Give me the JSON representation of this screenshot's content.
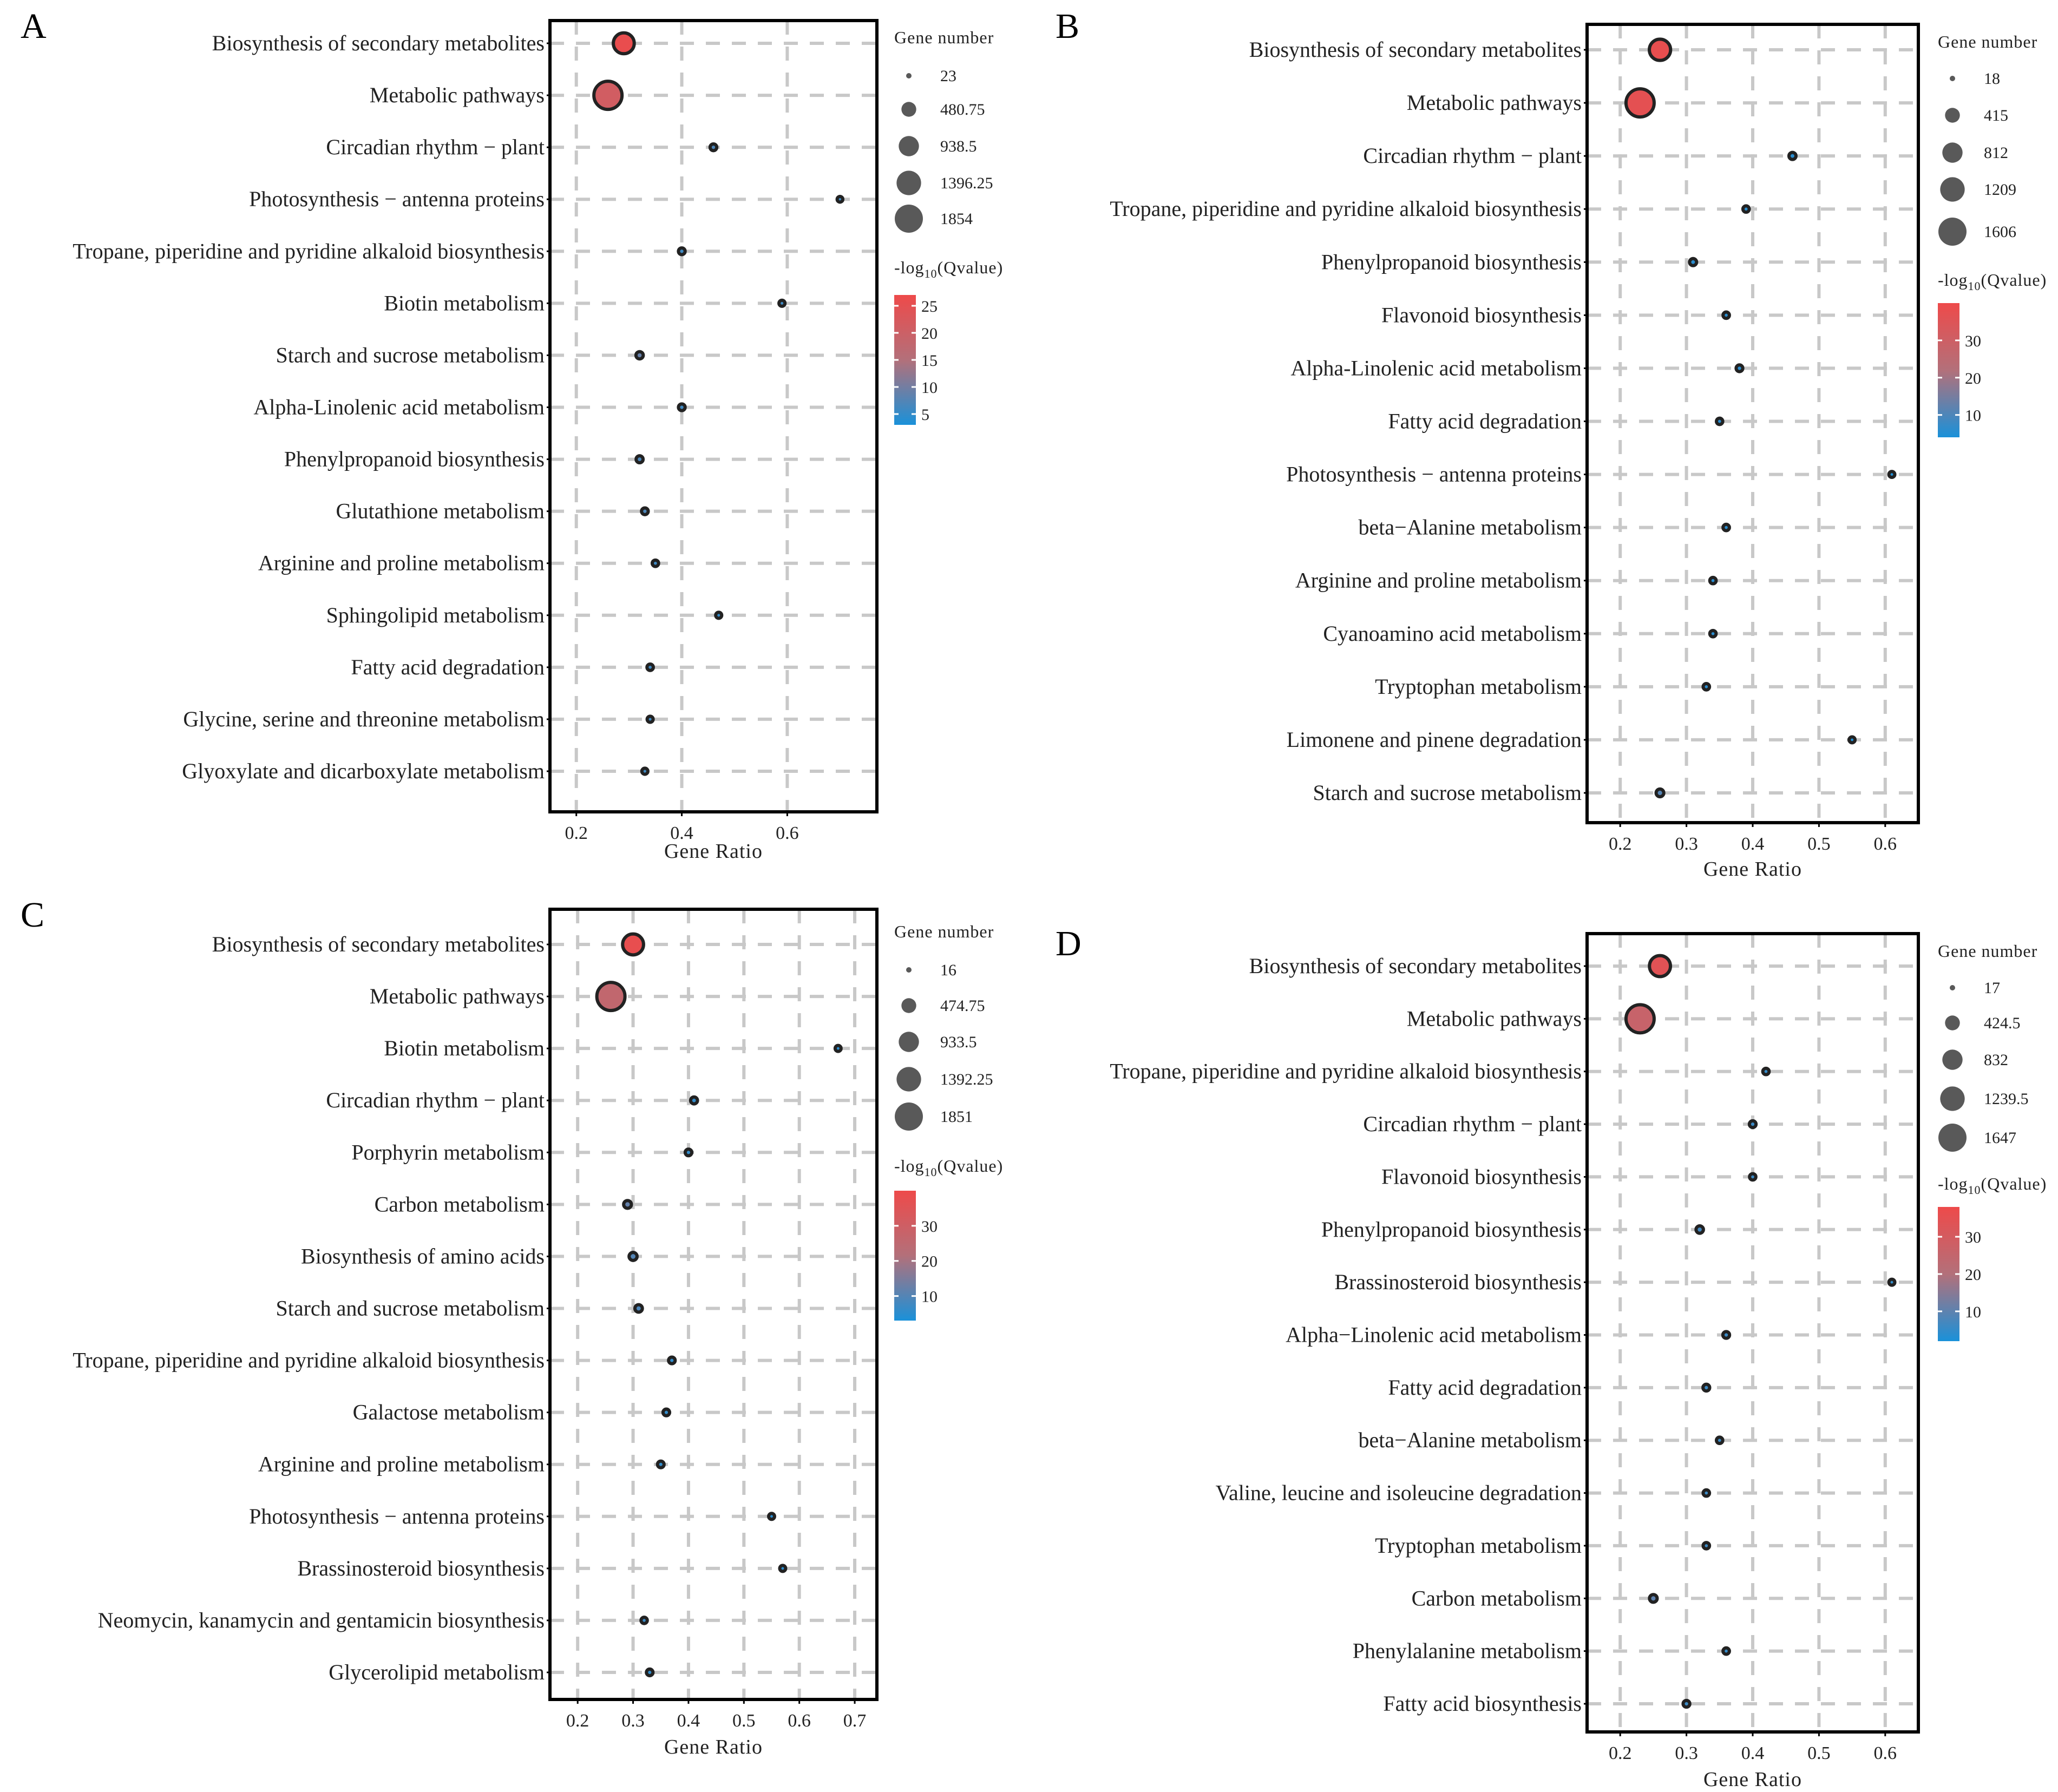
{
  "figure": {
    "panels": [
      {
        "letter": "A",
        "xlabel": "Gene Ratio",
        "size_legend_title": "Gene number",
        "size_legend_values": [
          "23",
          "480.75",
          "938.5",
          "1396.25",
          "1854"
        ],
        "color_legend_title": "-log10(Qvalue)",
        "color_legend_ticks": [
          "25",
          "20",
          "15",
          "10",
          "5"
        ]
      },
      {
        "letter": "B",
        "xlabel": "Gene Ratio",
        "size_legend_title": "Gene number",
        "size_legend_values": [
          "18",
          "415",
          "812",
          "1209",
          "1606"
        ],
        "color_legend_title": "-log10(Qvalue)",
        "color_legend_ticks": [
          "30",
          "20",
          "10"
        ]
      },
      {
        "letter": "C",
        "xlabel": "Gene Ratio",
        "size_legend_title": "Gene number",
        "size_legend_values": [
          "16",
          "474.75",
          "933.5",
          "1392.25",
          "1851"
        ],
        "color_legend_title": "-log10(Qvalue)",
        "color_legend_ticks": [
          "30",
          "20",
          "10"
        ]
      },
      {
        "letter": "D",
        "xlabel": "Gene Ratio",
        "size_legend_title": "Gene number",
        "size_legend_values": [
          "17",
          "424.5",
          "832",
          "1239.5",
          "1647"
        ],
        "color_legend_title": "-log10(Qvalue)",
        "color_legend_ticks": [
          "30",
          "20",
          "10"
        ]
      }
    ]
  },
  "chart_data": [
    {
      "panel": "A",
      "type": "scatter",
      "encoding": "bubble",
      "xlabel": "Gene Ratio",
      "ylabel": "",
      "xlim": [
        0.15,
        0.77
      ],
      "xticks": [
        0.2,
        0.4,
        0.6
      ],
      "grid": true,
      "legend": "right",
      "size_legend": {
        "title": "Gene number",
        "values": [
          23,
          480.75,
          938.5,
          1396.25,
          1854
        ]
      },
      "color_legend": {
        "title": "-log10(Qvalue)",
        "range": [
          3,
          27
        ],
        "ticks": [
          25,
          20,
          15,
          10,
          5
        ]
      },
      "terms": [
        "Biosynthesis of secondary metabolites",
        "Metabolic pathways",
        "Circadian rhythm − plant",
        "Photosynthesis − antenna proteins",
        "Tropane, piperidine and pyridine alkaloid biosynthesis",
        "Biotin metabolism",
        "Starch and sucrose metabolism",
        "Alpha-Linolenic acid metabolism",
        "Phenylpropanoid biosynthesis",
        "Glutathione metabolism",
        "Arginine and proline metabolism",
        "Sphingolipid metabolism",
        "Fatty acid degradation",
        "Glycine, serine and threonine metabolism",
        "Glyoxylate and dicarboxylate metabolism"
      ],
      "gene_ratio": [
        0.29,
        0.26,
        0.46,
        0.7,
        0.4,
        0.59,
        0.32,
        0.4,
        0.32,
        0.33,
        0.35,
        0.47,
        0.34,
        0.34,
        0.33
      ],
      "gene_number": [
        1000,
        1854,
        60,
        30,
        60,
        40,
        80,
        60,
        70,
        60,
        50,
        40,
        50,
        40,
        40
      ],
      "neg_log10_q": [
        26,
        21,
        7,
        6,
        6,
        6,
        9,
        6,
        7,
        7,
        6,
        5,
        6,
        6,
        6
      ]
    },
    {
      "panel": "B",
      "type": "scatter",
      "encoding": "bubble",
      "xlabel": "Gene Ratio",
      "ylabel": "",
      "xlim": [
        0.15,
        0.65
      ],
      "xticks": [
        0.2,
        0.3,
        0.4,
        0.5,
        0.6
      ],
      "grid": true,
      "legend": "right",
      "size_legend": {
        "title": "Gene number",
        "values": [
          18,
          415,
          812,
          1209,
          1606
        ]
      },
      "color_legend": {
        "title": "-log10(Qvalue)",
        "range": [
          4,
          40
        ],
        "ticks": [
          30,
          20,
          10
        ]
      },
      "terms": [
        "Biosynthesis of secondary metabolites",
        "Metabolic pathways",
        "Circadian rhythm − plant",
        "Tropane, piperidine and pyridine alkaloid biosynthesis",
        "Phenylpropanoid biosynthesis",
        "Flavonoid biosynthesis",
        "Alpha-Linolenic acid metabolism",
        "Fatty acid degradation",
        "Photosynthesis − antenna proteins",
        "beta−Alanine metabolism",
        "Arginine and proline metabolism",
        "Cyanoamino acid metabolism",
        "Tryptophan metabolism",
        "Limonene and pinene degradation",
        "Starch and sucrose metabolism"
      ],
      "gene_ratio": [
        0.26,
        0.23,
        0.46,
        0.39,
        0.31,
        0.36,
        0.38,
        0.35,
        0.61,
        0.36,
        0.34,
        0.34,
        0.33,
        0.55,
        0.26
      ],
      "gene_number": [
        900,
        1606,
        60,
        40,
        60,
        40,
        50,
        40,
        30,
        40,
        40,
        40,
        40,
        30,
        80
      ],
      "neg_log10_q": [
        38,
        37,
        6,
        6,
        6,
        6,
        6,
        6,
        5,
        6,
        6,
        6,
        6,
        5,
        11
      ]
    },
    {
      "panel": "C",
      "type": "scatter",
      "encoding": "bubble",
      "xlabel": "Gene Ratio",
      "ylabel": "",
      "xlim": [
        0.15,
        0.74
      ],
      "xticks": [
        0.2,
        0.3,
        0.4,
        0.5,
        0.6,
        0.7
      ],
      "grid": true,
      "legend": "right",
      "size_legend": {
        "title": "Gene number",
        "values": [
          16,
          474.75,
          933.5,
          1392.25,
          1851
        ]
      },
      "color_legend": {
        "title": "-log10(Qvalue)",
        "range": [
          3,
          40
        ],
        "ticks": [
          30,
          20,
          10
        ]
      },
      "terms": [
        "Biosynthesis of secondary metabolites",
        "Metabolic pathways",
        "Biotin metabolism",
        "Circadian rhythm − plant",
        "Porphyrin metabolism",
        "Carbon metabolism",
        "Biosynthesis of amino acids",
        "Starch and sucrose metabolism",
        "Tropane, piperidine and pyridine alkaloid biosynthesis",
        "Galactose metabolism",
        "Arginine and proline metabolism",
        "Photosynthesis − antenna proteins",
        "Brassinosteroid biosynthesis",
        "Neomycin, kanamycin and gentamicin biosynthesis",
        "Glycerolipid metabolism"
      ],
      "gene_ratio": [
        0.3,
        0.26,
        0.67,
        0.41,
        0.4,
        0.29,
        0.3,
        0.31,
        0.37,
        0.36,
        0.35,
        0.55,
        0.57,
        0.32,
        0.33
      ],
      "gene_number": [
        1000,
        1851,
        30,
        60,
        50,
        90,
        100,
        80,
        50,
        50,
        50,
        30,
        30,
        40,
        50
      ],
      "neg_log10_q": [
        38,
        26,
        5,
        6,
        6,
        12,
        10,
        9,
        6,
        6,
        6,
        5,
        5,
        7,
        6
      ]
    },
    {
      "panel": "D",
      "type": "scatter",
      "encoding": "bubble",
      "xlabel": "Gene Ratio",
      "ylabel": "",
      "xlim": [
        0.15,
        0.65
      ],
      "xticks": [
        0.2,
        0.3,
        0.4,
        0.5,
        0.6
      ],
      "grid": true,
      "legend": "right",
      "size_legend": {
        "title": "Gene number",
        "values": [
          17,
          424.5,
          832,
          1239.5,
          1647
        ]
      },
      "color_legend": {
        "title": "-log10(Qvalue)",
        "range": [
          2,
          38
        ],
        "ticks": [
          30,
          20,
          10
        ]
      },
      "terms": [
        "Biosynthesis of secondary metabolites",
        "Metabolic pathways",
        "Tropane, piperidine and pyridine alkaloid biosynthesis",
        "Circadian rhythm − plant",
        "Flavonoid biosynthesis",
        "Phenylpropanoid biosynthesis",
        "Brassinosteroid biosynthesis",
        "Alpha−Linolenic acid metabolism",
        "Fatty acid degradation",
        "beta−Alanine metabolism",
        "Valine, leucine and isoleucine degradation",
        "Tryptophan metabolism",
        "Carbon metabolism",
        "Phenylalanine metabolism",
        "Fatty acid biosynthesis"
      ],
      "gene_ratio": [
        0.26,
        0.23,
        0.42,
        0.4,
        0.4,
        0.32,
        0.61,
        0.36,
        0.33,
        0.35,
        0.33,
        0.33,
        0.25,
        0.36,
        0.3
      ],
      "gene_number": [
        900,
        1647,
        40,
        50,
        40,
        70,
        30,
        50,
        50,
        40,
        40,
        40,
        80,
        40,
        50
      ],
      "neg_log10_q": [
        34,
        26,
        5,
        6,
        6,
        7,
        5,
        6,
        6,
        6,
        6,
        6,
        10,
        5,
        6
      ]
    }
  ]
}
